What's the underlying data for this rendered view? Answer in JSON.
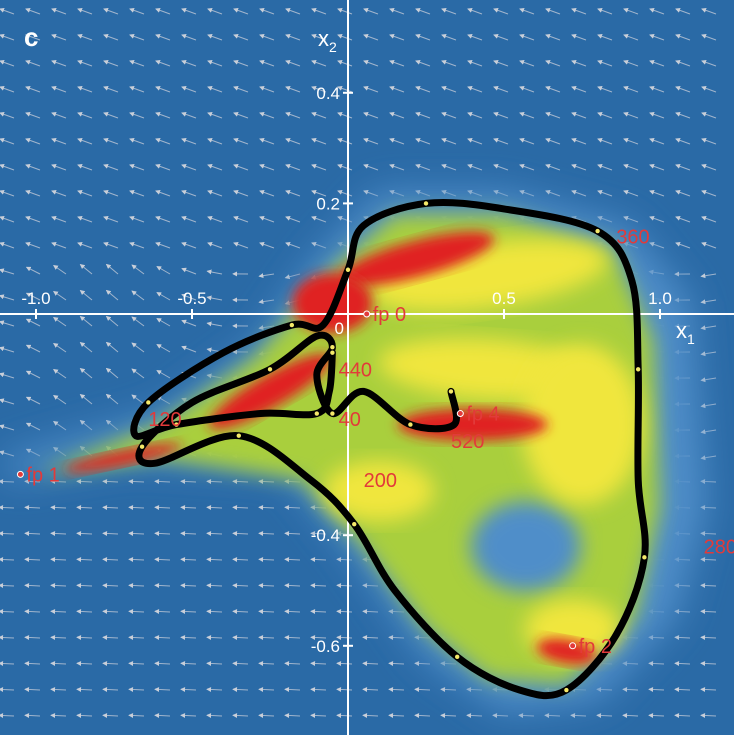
{
  "panel_label": "c",
  "chart_data": {
    "type": "scatter",
    "title": "",
    "xlabel": "x1",
    "ylabel": "x2",
    "xlabel_main": "x",
    "xlabel_sub": "1",
    "ylabel_main": "x",
    "ylabel_sub": "2",
    "xlim": [
      -1.1,
      1.2
    ],
    "ylim": [
      -0.72,
      0.52
    ],
    "x_ticks": [
      {
        "value": -1.0,
        "label": "-1.0"
      },
      {
        "value": -0.5,
        "label": "-0.5"
      },
      {
        "value": 0.5,
        "label": "0.5"
      },
      {
        "value": 1.0,
        "label": "1.0"
      }
    ],
    "y_ticks": [
      {
        "value": 0.4,
        "label": "0.4"
      },
      {
        "value": 0.2,
        "label": "0.2"
      },
      {
        "value": -0.4,
        "label": "-0.4"
      },
      {
        "value": -0.6,
        "label": "-0.6"
      }
    ],
    "origin_label": "0",
    "fixed_points": [
      {
        "label": "fp 0",
        "x": 0.06,
        "y": 0.0
      },
      {
        "label": "fp 1",
        "x": -1.05,
        "y": -0.29
      },
      {
        "label": "fp 2",
        "x": 0.72,
        "y": -0.6
      },
      {
        "label": "fp 4",
        "x": 0.36,
        "y": -0.18
      }
    ],
    "time_labels": [
      {
        "label": "360",
        "x": 0.86,
        "y": 0.14
      },
      {
        "label": "440",
        "x": -0.03,
        "y": -0.1
      },
      {
        "label": "40",
        "x": -0.03,
        "y": -0.19
      },
      {
        "label": "520",
        "x": 0.33,
        "y": -0.23
      },
      {
        "label": "120",
        "x": -0.64,
        "y": -0.19
      },
      {
        "label": "200",
        "x": 0.05,
        "y": -0.3
      },
      {
        "label": "280",
        "x": 1.14,
        "y": -0.42
      }
    ],
    "trajectory": [
      [
        -0.05,
        -0.07
      ],
      [
        -0.06,
        -0.14
      ],
      [
        -0.1,
        -0.18
      ],
      [
        -0.28,
        -0.18
      ],
      [
        -0.55,
        -0.2
      ],
      [
        -0.68,
        -0.22
      ],
      [
        -0.64,
        -0.16
      ],
      [
        -0.4,
        -0.07
      ],
      [
        -0.18,
        -0.02
      ],
      [
        -0.08,
        -0.02
      ],
      [
        0.0,
        0.08
      ],
      [
        0.05,
        0.16
      ],
      [
        0.25,
        0.2
      ],
      [
        0.5,
        0.19
      ],
      [
        0.8,
        0.15
      ],
      [
        0.91,
        0.06
      ],
      [
        0.93,
        -0.1
      ],
      [
        0.93,
        -0.3
      ],
      [
        0.95,
        -0.44
      ],
      [
        0.86,
        -0.58
      ],
      [
        0.7,
        -0.68
      ],
      [
        0.55,
        -0.68
      ],
      [
        0.35,
        -0.62
      ],
      [
        0.15,
        -0.5
      ],
      [
        0.02,
        -0.38
      ],
      [
        -0.12,
        -0.3
      ],
      [
        -0.35,
        -0.22
      ],
      [
        -0.62,
        -0.27
      ],
      [
        -0.66,
        -0.24
      ],
      [
        -0.5,
        -0.16
      ],
      [
        -0.25,
        -0.1
      ],
      [
        -0.1,
        -0.04
      ],
      [
        -0.05,
        -0.06
      ],
      [
        -0.1,
        -0.11
      ],
      [
        -0.05,
        -0.18
      ],
      [
        0.05,
        -0.14
      ],
      [
        0.2,
        -0.2
      ],
      [
        0.34,
        -0.2
      ],
      [
        0.33,
        -0.14
      ]
    ],
    "grid": false,
    "legend": "none",
    "colors": {
      "background": "#2a6aa6",
      "low_density": "#4f8ec9",
      "mid_density": "#a9cf3c",
      "high_density": "#f0e63c",
      "peak_density": "#e02020",
      "trajectory": "#000000",
      "axis": "#ffffff",
      "label": "#e23a3a",
      "arrow": "#c9cfd9",
      "marker": "#f5e96a"
    }
  }
}
